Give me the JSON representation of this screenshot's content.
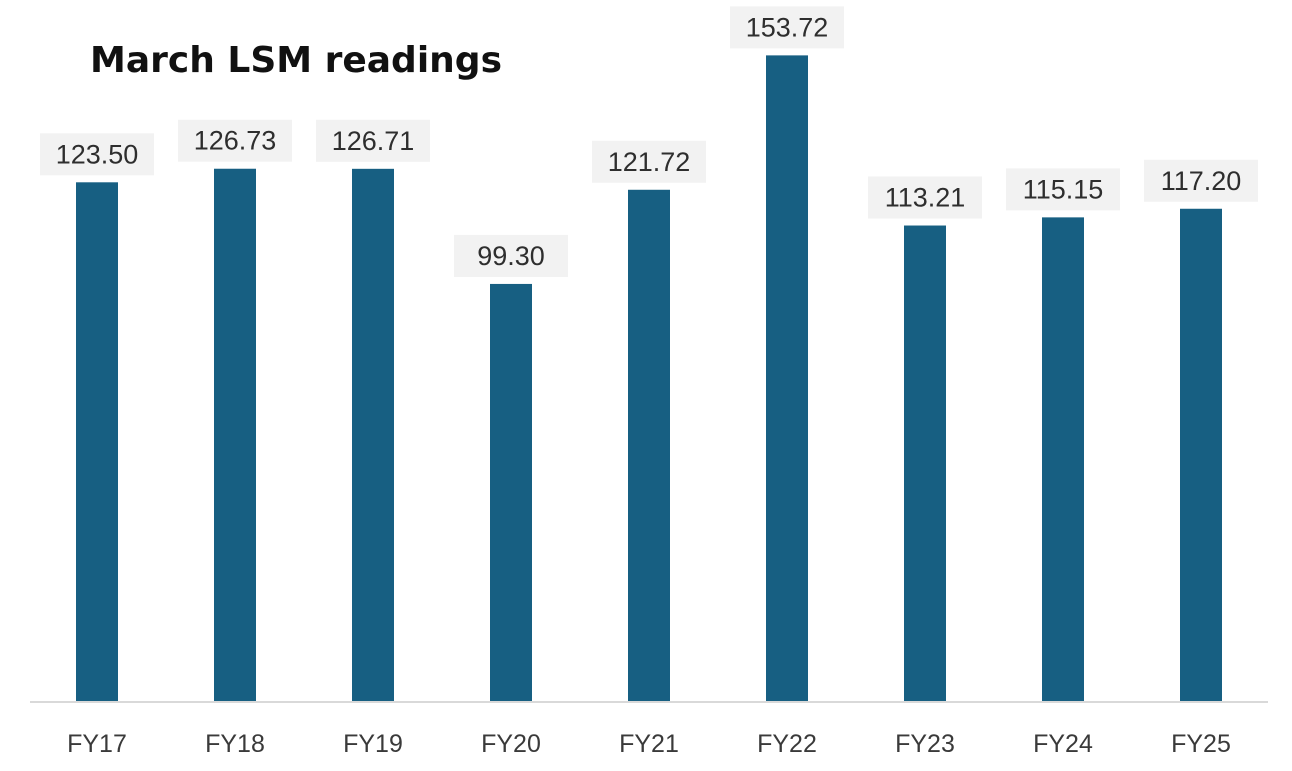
{
  "chart_data": {
    "type": "bar",
    "title": "March LSM readings",
    "categories": [
      "FY17",
      "FY18",
      "FY19",
      "FY20",
      "FY21",
      "FY22",
      "FY23",
      "FY24",
      "FY25"
    ],
    "values": [
      123.5,
      126.73,
      126.71,
      99.3,
      121.72,
      153.72,
      113.21,
      115.15,
      117.2
    ],
    "data_labels": [
      "123.50",
      "126.73",
      "126.71",
      "99.30",
      "121.72",
      "153.72",
      "113.21",
      "115.15",
      "117.20"
    ],
    "xlabel": "",
    "ylabel": "",
    "y_axis_visible": false,
    "grid": false,
    "legend": "none",
    "colors": {
      "bar": "#175f82",
      "label_box": "#f2f2f2",
      "axis": "#d9d9d9"
    }
  }
}
